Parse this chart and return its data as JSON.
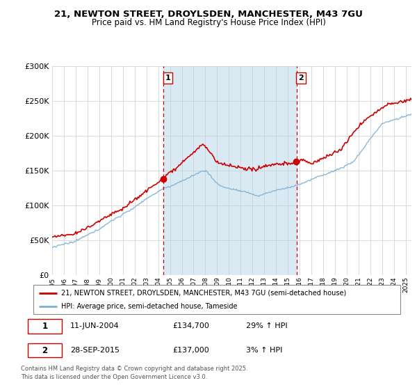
{
  "title1": "21, NEWTON STREET, DROYLSDEN, MANCHESTER, M43 7GU",
  "title2": "Price paid vs. HM Land Registry's House Price Index (HPI)",
  "legend_line1": "21, NEWTON STREET, DROYLSDEN, MANCHESTER, M43 7GU (semi-detached house)",
  "legend_line2": "HPI: Average price, semi-detached house, Tameside",
  "sale1_date": "11-JUN-2004",
  "sale1_price": "£134,700",
  "sale1_hpi": "29% ↑ HPI",
  "sale2_date": "28-SEP-2015",
  "sale2_price": "£137,000",
  "sale2_hpi": "3% ↑ HPI",
  "footer": "Contains HM Land Registry data © Crown copyright and database right 2025.\nThis data is licensed under the Open Government Licence v3.0.",
  "sale1_year": 2004.44,
  "sale2_year": 2015.74,
  "price_color": "#cc0000",
  "hpi_color": "#7eb0d4",
  "sale_dot_color": "#cc0000",
  "vline_color": "#cc0000",
  "shade_color": "#daeaf5",
  "ylim": [
    0,
    300000
  ],
  "yticks": [
    0,
    50000,
    100000,
    150000,
    200000,
    250000,
    300000
  ],
  "xlim_start": 1995,
  "xlim_end": 2025.5,
  "bg_color": "#ffffff"
}
